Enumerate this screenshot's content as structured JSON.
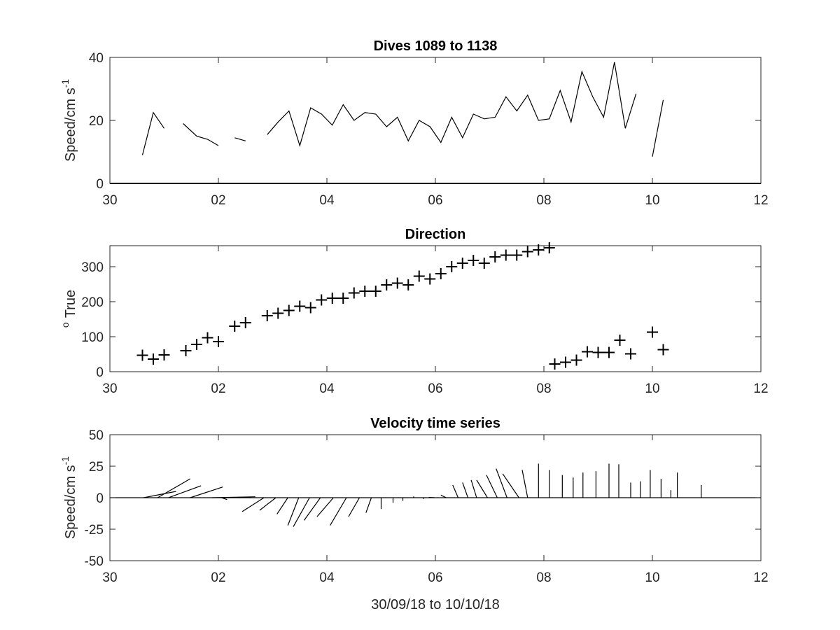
{
  "chart_data": [
    {
      "type": "line",
      "title": "Dives 1089 to 1138",
      "ylabel": "Speed/cm s",
      "ylabel_superscript": "-1",
      "xlim": [
        0,
        12
      ],
      "ylim": [
        0,
        40
      ],
      "xticks": [
        0,
        2,
        4,
        6,
        8,
        10,
        12
      ],
      "xtick_labels": [
        "30",
        "02",
        "04",
        "06",
        "08",
        "10",
        "12"
      ],
      "yticks": [
        0,
        20,
        40
      ],
      "ytick_labels": [
        "0",
        "20",
        "40"
      ],
      "grid": false,
      "color": "#000000",
      "series": [
        {
          "values": [
            [
              0.6,
              9
            ],
            [
              0.8,
              22.5
            ],
            [
              1.0,
              17.5
            ]
          ]
        },
        {
          "values": [
            [
              1.35,
              19
            ],
            [
              1.6,
              15
            ],
            [
              1.8,
              14
            ],
            [
              2.0,
              12
            ]
          ]
        },
        {
          "values": [
            [
              2.3,
              14.5
            ],
            [
              2.5,
              13.5
            ]
          ]
        },
        {
          "values": [
            [
              2.9,
              15.5
            ],
            [
              3.1,
              19.5
            ],
            [
              3.3,
              23
            ],
            [
              3.5,
              12
            ],
            [
              3.7,
              24
            ],
            [
              3.9,
              22
            ],
            [
              4.1,
              18.5
            ],
            [
              4.3,
              25
            ],
            [
              4.5,
              20
            ],
            [
              4.7,
              22.5
            ],
            [
              4.9,
              22
            ],
            [
              5.1,
              18
            ],
            [
              5.3,
              21
            ],
            [
              5.5,
              13.5
            ],
            [
              5.7,
              20
            ],
            [
              5.9,
              18
            ],
            [
              6.1,
              13
            ],
            [
              6.3,
              21
            ],
            [
              6.5,
              14.5
            ],
            [
              6.7,
              22
            ],
            [
              6.9,
              20.5
            ],
            [
              7.1,
              21
            ],
            [
              7.3,
              27.5
            ],
            [
              7.5,
              23
            ],
            [
              7.7,
              28
            ],
            [
              7.9,
              20
            ],
            [
              8.1,
              20.5
            ],
            [
              8.3,
              29.5
            ],
            [
              8.5,
              19.5
            ],
            [
              8.7,
              35.5
            ],
            [
              8.9,
              27.5
            ],
            [
              9.1,
              21
            ],
            [
              9.3,
              38.5
            ],
            [
              9.5,
              17.5
            ],
            [
              9.7,
              28.5
            ]
          ]
        },
        {
          "values": [
            [
              10.0,
              8.5
            ],
            [
              10.2,
              26.5
            ]
          ]
        }
      ]
    },
    {
      "type": "scatter",
      "title": "Direction",
      "ylabel": "True",
      "ylabel_superscript": "o",
      "marker": "+",
      "xlim": [
        0,
        12
      ],
      "ylim": [
        0,
        360
      ],
      "xticks": [
        0,
        2,
        4,
        6,
        8,
        10,
        12
      ],
      "xtick_labels": [
        "30",
        "02",
        "04",
        "06",
        "08",
        "10",
        "12"
      ],
      "yticks": [
        0,
        100,
        200,
        300
      ],
      "ytick_labels": [
        "0",
        "100",
        "200",
        "300"
      ],
      "grid": false,
      "color": "#000000",
      "points": [
        [
          0.6,
          47
        ],
        [
          0.8,
          36
        ],
        [
          1.0,
          48
        ],
        [
          1.4,
          60
        ],
        [
          1.6,
          78
        ],
        [
          1.8,
          97
        ],
        [
          2.0,
          86
        ],
        [
          2.3,
          130
        ],
        [
          2.5,
          140
        ],
        [
          2.9,
          160
        ],
        [
          3.1,
          167
        ],
        [
          3.3,
          175
        ],
        [
          3.5,
          187
        ],
        [
          3.7,
          183
        ],
        [
          3.9,
          205
        ],
        [
          4.1,
          210
        ],
        [
          4.3,
          210
        ],
        [
          4.5,
          225
        ],
        [
          4.7,
          230
        ],
        [
          4.9,
          230
        ],
        [
          5.1,
          248
        ],
        [
          5.3,
          253
        ],
        [
          5.5,
          248
        ],
        [
          5.7,
          273
        ],
        [
          5.9,
          265
        ],
        [
          6.1,
          280
        ],
        [
          6.3,
          300
        ],
        [
          6.5,
          310
        ],
        [
          6.7,
          318
        ],
        [
          6.9,
          310
        ],
        [
          7.1,
          328
        ],
        [
          7.3,
          333
        ],
        [
          7.5,
          333
        ],
        [
          7.7,
          343
        ],
        [
          7.9,
          348
        ],
        [
          8.1,
          354
        ],
        [
          8.2,
          22
        ],
        [
          8.4,
          27
        ],
        [
          8.6,
          33
        ],
        [
          8.8,
          57
        ],
        [
          9.0,
          55
        ],
        [
          9.2,
          55
        ],
        [
          9.4,
          90
        ],
        [
          9.6,
          51
        ],
        [
          10.0,
          113
        ],
        [
          10.2,
          63
        ]
      ]
    },
    {
      "type": "line",
      "subtype": "stick-plot",
      "title": "Velocity time series",
      "ylabel": "Speed/cm s",
      "ylabel_superscript": "-1",
      "xlabel": "30/09/18 to 10/10/18",
      "xlim": [
        0,
        12
      ],
      "ylim": [
        -50,
        50
      ],
      "xticks": [
        0,
        2,
        4,
        6,
        8,
        10,
        12
      ],
      "xtick_labels": [
        "30",
        "02",
        "04",
        "06",
        "08",
        "10",
        "12"
      ],
      "yticks": [
        -50,
        -25,
        0,
        25,
        50
      ],
      "ytick_labels": [
        "-50",
        "-25",
        "0",
        "25",
        "50"
      ],
      "grid": false,
      "color": "#000000",
      "baseline": 0,
      "sticks": [
        [
          0.6,
          0.1,
          0.6,
          5.0
        ],
        [
          0.8,
          0.4,
          0.6,
          15.0
        ],
        [
          1.0,
          0.4,
          0.6,
          9.5
        ],
        [
          1.4,
          0.4,
          0.6,
          8.5
        ],
        [
          1.8,
          0.4,
          0.8,
          0.7
        ],
        [
          2.0,
          0.3,
          0.1,
          -1.5
        ],
        [
          2.3,
          0.4,
          0.1,
          0.2
        ],
        [
          2.5,
          0.5,
          -0.1,
          0.1
        ],
        [
          2.9,
          -0.3,
          -0.4,
          -11.0
        ],
        [
          3.1,
          -0.2,
          -0.3,
          -10.0
        ],
        [
          3.3,
          -0.1,
          -0.2,
          -13.0
        ],
        [
          3.5,
          -0.1,
          -0.2,
          -22.0
        ],
        [
          3.7,
          -0.1,
          -0.3,
          -23.0
        ],
        [
          3.9,
          -0.1,
          -0.3,
          -18.0
        ],
        [
          4.1,
          0.1,
          -0.3,
          -15.0
        ],
        [
          4.3,
          0.3,
          -0.3,
          -22.0
        ],
        [
          4.5,
          0.5,
          -0.2,
          -15.0
        ],
        [
          4.7,
          0.6,
          -0.1,
          -12.0
        ],
        [
          4.9,
          0.5,
          0.0,
          -9.0
        ],
        [
          5.1,
          0.6,
          0.0,
          -4.0
        ],
        [
          5.3,
          0.5,
          0.0,
          -2.5
        ],
        [
          5.5,
          0.5,
          0.0,
          1.0
        ],
        [
          5.7,
          0.4,
          0.0,
          -1.0
        ],
        [
          5.9,
          0.4,
          -0.1,
          0.2
        ],
        [
          6.1,
          0.5,
          -0.1,
          2.0
        ],
        [
          6.3,
          0.6,
          -0.1,
          10.0
        ],
        [
          6.5,
          0.5,
          -0.1,
          12.0
        ],
        [
          6.7,
          0.3,
          -0.1,
          14.0
        ],
        [
          6.9,
          0.3,
          -0.2,
          14.0
        ],
        [
          7.1,
          0.2,
          -0.2,
          18.0
        ],
        [
          7.3,
          0.1,
          -0.2,
          23.0
        ],
        [
          7.5,
          0.2,
          -0.3,
          19.0
        ],
        [
          7.7,
          0.0,
          -0.1,
          22.0
        ],
        [
          7.9,
          0.0,
          0.0,
          27.0
        ],
        [
          8.1,
          0.0,
          0.0,
          22.0
        ],
        [
          8.3,
          0.2,
          0.0,
          18.0
        ],
        [
          8.5,
          0.2,
          0.0,
          16.0
        ],
        [
          8.7,
          0.1,
          0.0,
          20.0
        ],
        [
          8.9,
          0.3,
          0.0,
          21.0
        ],
        [
          9.1,
          0.5,
          0.0,
          27.0
        ],
        [
          9.3,
          0.4,
          0.0,
          26.5
        ],
        [
          9.5,
          0.5,
          0.0,
          12.0
        ],
        [
          9.7,
          0.4,
          0.0,
          13.0
        ],
        [
          9.9,
          0.3,
          0.0,
          22.0
        ],
        [
          10.1,
          0.3,
          0.0,
          15.0
        ],
        [
          10.2,
          0.7,
          0.0,
          6.0
        ],
        [
          10.4,
          0.3,
          0.0,
          20.0
        ],
        [
          10.8,
          0.5,
          0.0,
          10.0
        ]
      ]
    }
  ]
}
